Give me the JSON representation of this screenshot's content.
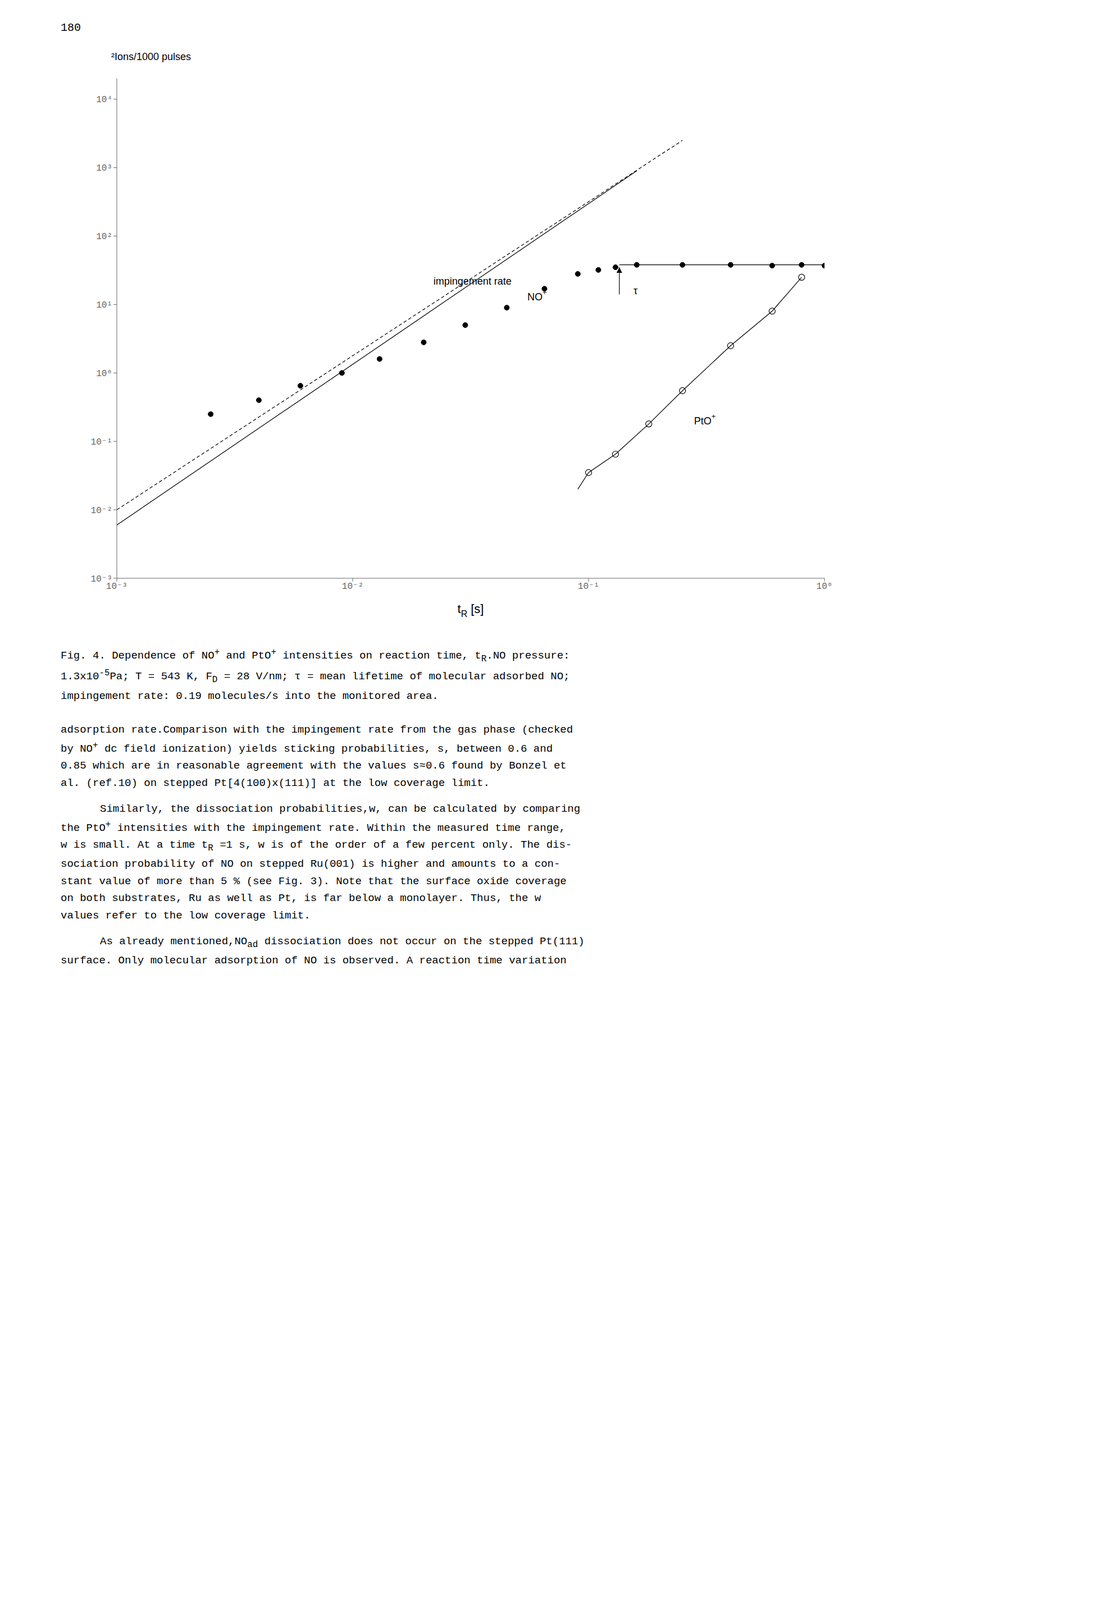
{
  "page_number": "180",
  "chart_data": {
    "type": "scatter",
    "log": true,
    "grid": false,
    "x_label": [
      "t",
      {
        "sub": "R"
      },
      " [s]"
    ],
    "y_label": "²Ions/1000 pulses",
    "xlim": [
      0.001,
      1
    ],
    "ylim": [
      0.001,
      20000
    ],
    "xticks": [
      {
        "value": 0.001,
        "label": "10⁻³"
      },
      {
        "value": 0.01,
        "label": "10⁻²"
      },
      {
        "value": 0.1,
        "label": "10⁻¹"
      },
      {
        "value": 1,
        "label": "10⁰"
      }
    ],
    "yticks": [
      {
        "value": 0.001,
        "label": "10⁻³"
      },
      {
        "value": 0.01,
        "label": "10⁻²"
      },
      {
        "value": 0.1,
        "label": "10⁻¹"
      },
      {
        "value": 1,
        "label": "10⁰"
      },
      {
        "value": 10,
        "label": "10¹"
      },
      {
        "value": 100,
        "label": "10²"
      },
      {
        "value": 1000,
        "label": "10³"
      },
      {
        "value": 10000,
        "label": "10⁴"
      }
    ],
    "series": [
      {
        "type": "line",
        "line_style": "solid",
        "marker": "none",
        "color": "black",
        "x": [
          0.001,
          0.16
        ],
        "values": [
          0.006,
          900
        ]
      },
      {
        "type": "line",
        "line_style": "dashed",
        "marker": "none",
        "color": "black",
        "x": [
          0.001,
          0.25
        ],
        "values": [
          0.01,
          2500
        ]
      },
      {
        "type": "scatter",
        "marker": "filled_circle",
        "color": "black",
        "x": [
          0.0025,
          0.004,
          0.006,
          0.009,
          0.013,
          0.02,
          0.03,
          0.045,
          0.065,
          0.09,
          0.11,
          0.13
        ],
        "values": [
          0.25,
          0.4,
          0.65,
          1.0,
          1.6,
          2.8,
          5.0,
          9.0,
          17,
          28,
          32,
          35
        ]
      },
      {
        "type": "scatter",
        "marker": "filled_circle",
        "color": "black",
        "x": [
          0.16,
          0.25,
          0.4,
          0.6,
          0.8,
          1.0
        ],
        "values": [
          38,
          38,
          38,
          37,
          38,
          37
        ]
      },
      {
        "type": "line",
        "line_style": "solid",
        "marker": "none",
        "color": "black",
        "x": [
          0.135,
          1.0
        ],
        "values": [
          38,
          38
        ]
      },
      {
        "type": "scatter",
        "marker": "open_circle",
        "color": "black",
        "x": [
          0.1,
          0.13,
          0.18,
          0.25,
          0.4,
          0.6,
          0.8
        ],
        "values": [
          0.035,
          0.065,
          0.18,
          0.55,
          2.5,
          8.0,
          25.0
        ]
      },
      {
        "type": "line",
        "line_style": "solid",
        "marker": "none",
        "color": "black",
        "x": [
          0.09,
          0.1,
          0.13,
          0.18,
          0.25,
          0.4,
          0.6,
          0.8
        ],
        "values": [
          0.02,
          0.035,
          0.065,
          0.18,
          0.55,
          2.5,
          8.0,
          25.0
        ]
      }
    ],
    "annotations": [
      {
        "type": "text",
        "text": [
          "impingement rate"
        ],
        "x": 0.022,
        "y": 22
      },
      {
        "type": "text",
        "text": [
          "NO",
          {
            "sup": "+"
          }
        ],
        "x": 0.055,
        "y": 13
      },
      {
        "type": "text",
        "text": [
          "PtO",
          {
            "sup": "+"
          }
        ],
        "x": 0.28,
        "y": 0.2
      },
      {
        "type": "text",
        "text": [
          "τ"
        ],
        "x": 0.155,
        "y": 16
      },
      {
        "type": "arrow",
        "x": 0.135,
        "y_from": 14,
        "y_to": 35
      }
    ]
  },
  "caption": [
    [
      "Fig. 4. Dependence of NO",
      {
        "sup": "+"
      },
      " and PtO",
      {
        "sup": "+"
      },
      " intensities on reaction time, t",
      {
        "sub": "R"
      },
      ".NO pressure:"
    ],
    [
      "1.3x10",
      {
        "sup": "-5"
      },
      "Pa; T = 543 K, F",
      {
        "sub": "D"
      },
      " = 28 V/nm; τ = mean lifetime of molecular adsorbed NO;"
    ],
    [
      "impingement rate: 0.19 molecules/s into the monitored area."
    ]
  ],
  "body": [
    [
      [
        "adsorption rate.Comparison with the impingement rate from the gas phase (checked"
      ],
      [
        "by NO",
        {
          "sup": "+"
        },
        " dc field ionization) yields sticking probabilities, s, between 0.6 and"
      ],
      [
        "0.85 which are in reasonable agreement with the values s≈0.6 found by Bonzel et"
      ],
      [
        "al. (ref.10) on stepped Pt[4(100)x(111)] at the low coverage limit."
      ]
    ],
    [
      [
        "Similarly, the dissociation probabilities,w, can be calculated by comparing"
      ],
      [
        "the PtO",
        {
          "sup": "+"
        },
        " intensities with the impingement rate. Within the measured time range,"
      ],
      [
        "w is small. At a time t",
        {
          "sub": "R"
        },
        " =1 s, w is of the order of a few percent only. The dis-"
      ],
      [
        "sociation probability of NO on stepped Ru(001) is higher and amounts to a con-"
      ],
      [
        "stant value of more than 5 % (see Fig. 3). Note that the surface oxide coverage"
      ],
      [
        "on both substrates, Ru as well as Pt, is far below a monolayer. Thus, the w"
      ],
      [
        "values refer to the low coverage limit."
      ]
    ],
    [
      [
        "As already mentioned,NO",
        {
          "sub": "ad"
        },
        " dissociation does not occur on the stepped Pt(111)"
      ],
      [
        "surface. Only molecular adsorption of NO is observed. A reaction time variation"
      ]
    ]
  ]
}
